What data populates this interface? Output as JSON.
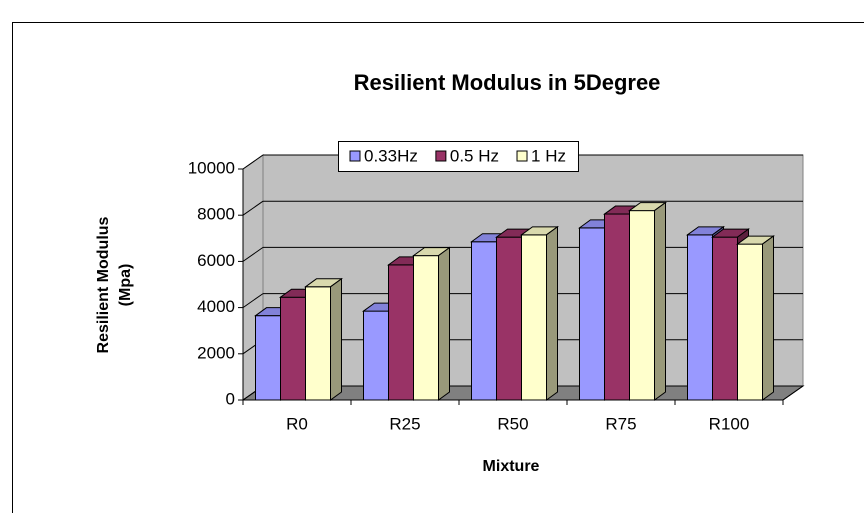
{
  "chart_data": {
    "type": "bar3d",
    "title": "Resilient Modulus in 5Degree",
    "x_label": "Mixture",
    "y_label": [
      "Resilient Modulus",
      "(Mpa)"
    ],
    "categories": [
      "R0",
      "R25",
      "R50",
      "R75",
      "R100"
    ],
    "series": [
      {
        "name": "0.33Hz",
        "color": "#9999ff",
        "values": [
          3650,
          3850,
          6850,
          7450,
          7150
        ]
      },
      {
        "name": "0.5 Hz",
        "color": "#993366",
        "values": [
          4450,
          5850,
          7050,
          8050,
          7050
        ]
      },
      {
        "name": "1 Hz",
        "color": "#ffffcc",
        "values": [
          4900,
          6250,
          7150,
          8200,
          6750
        ]
      }
    ],
    "ylim": [
      0,
      10000
    ],
    "yticks": [
      0,
      2000,
      4000,
      6000,
      8000,
      10000
    ],
    "grid": true,
    "legend": "top"
  }
}
